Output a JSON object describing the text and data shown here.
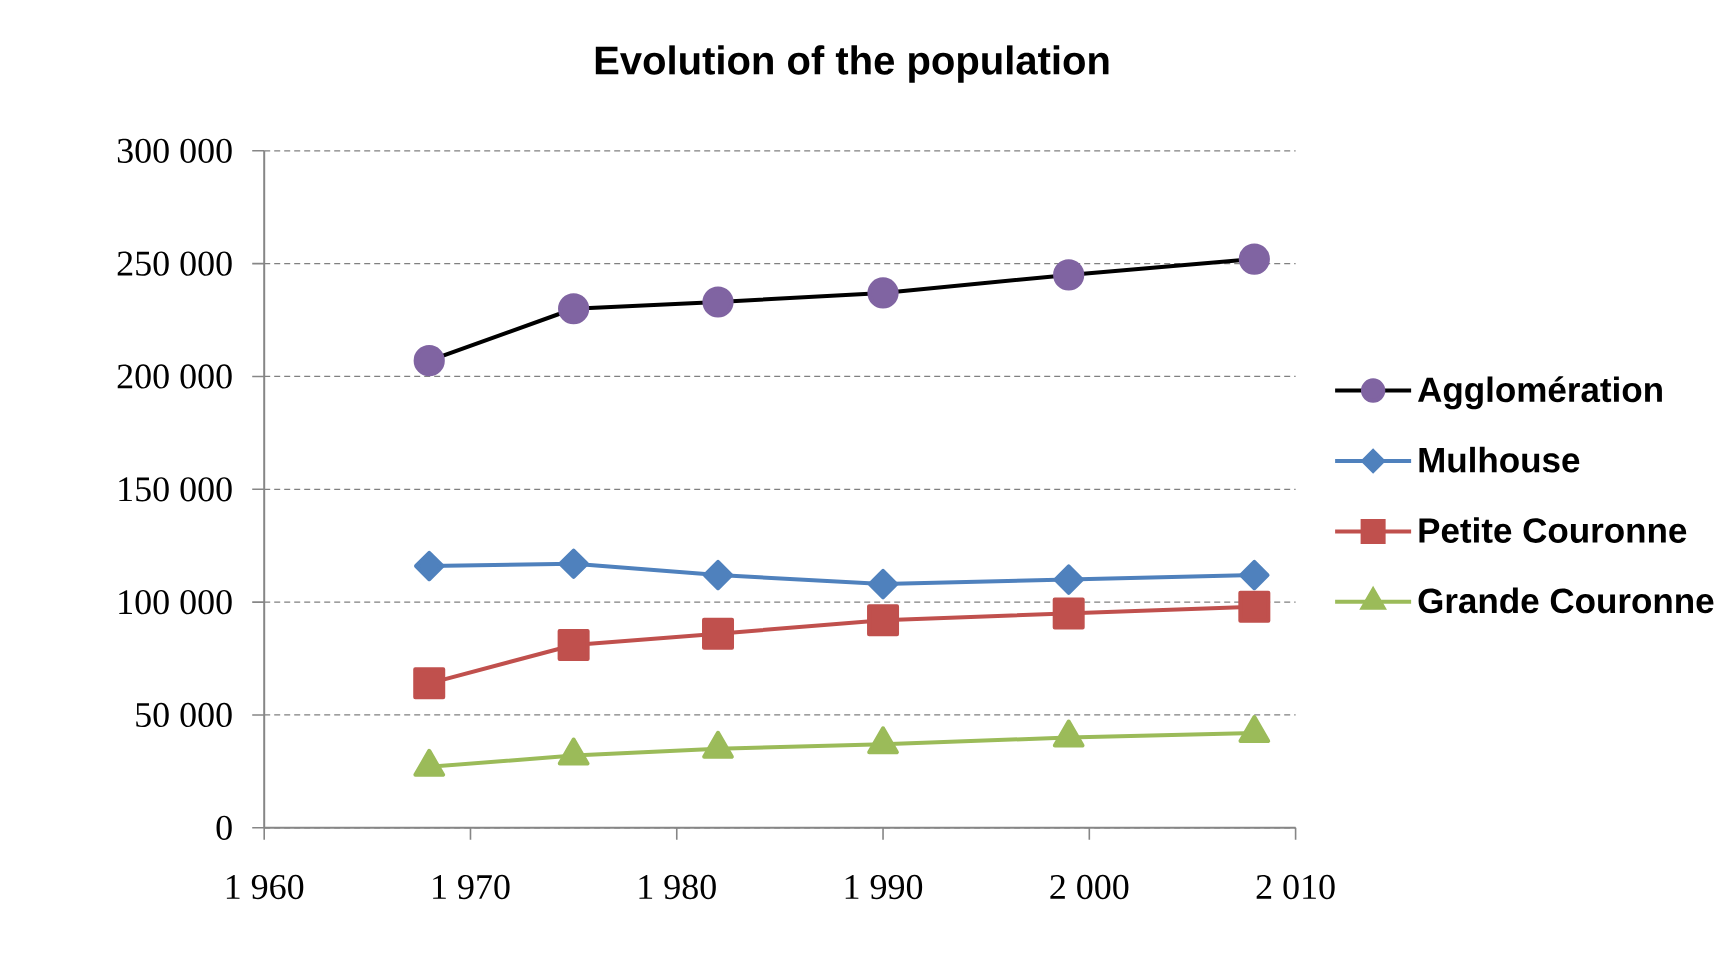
{
  "chart_data": {
    "type": "line",
    "title": "Evolution of the population",
    "x": [
      1968,
      1975,
      1982,
      1990,
      1999,
      2008
    ],
    "series": [
      {
        "name": "Agglomération",
        "color": "#000000",
        "colors": [
          "#8064a2",
          "#8064a2",
          "#8064a2",
          "#8064a2",
          "#8064a2",
          "#8064a2"
        ],
        "marker": "circle",
        "values": [
          207000,
          230000,
          233000,
          237000,
          245000,
          252000
        ]
      },
      {
        "name": "Mulhouse",
        "color": "#4f81bd",
        "marker": "diamond",
        "values": [
          116000,
          117000,
          112000,
          108000,
          110000,
          112000
        ]
      },
      {
        "name": "Petite Couronne",
        "color": "#c0504d",
        "marker": "square",
        "values": [
          64000,
          81000,
          86000,
          92000,
          95000,
          98000
        ]
      },
      {
        "name": "Grande Couronne",
        "color": "#9bbb59",
        "marker": "triangle",
        "values": [
          27000,
          32000,
          35000,
          37000,
          40000,
          42000
        ]
      }
    ],
    "xlim": [
      1960,
      2010
    ],
    "xticks": [
      {
        "value": 1960,
        "label": "1 960"
      },
      {
        "value": 1970,
        "label": "1 970"
      },
      {
        "value": 1980,
        "label": "1 980"
      },
      {
        "value": 1990,
        "label": "1 990"
      },
      {
        "value": 2000,
        "label": "2 000"
      },
      {
        "value": 2010,
        "label": "2 010"
      }
    ],
    "ylim": [
      0,
      300000
    ],
    "yticks": [
      0,
      {
        "value": 50000,
        "label": "50 000"
      },
      {
        "value": 100000,
        "label": "100 000"
      },
      {
        "value": 150000,
        "label": "150 000"
      },
      {
        "value": 200000,
        "label": "200 000"
      },
      {
        "value": 250000,
        "label": "250 000"
      },
      {
        "value": 300000,
        "label": "300 000"
      }
    ],
    "grid": "y",
    "legend": "right"
  }
}
